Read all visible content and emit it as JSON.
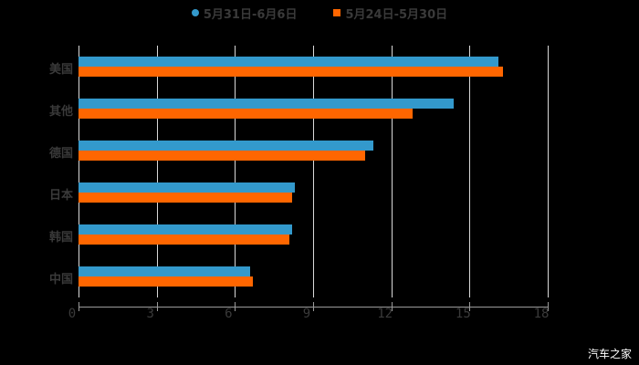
{
  "chart_data": {
    "type": "bar",
    "orientation": "horizontal",
    "title": "",
    "xlabel": "",
    "ylabel": "",
    "categories": [
      "美国",
      "其他",
      "德国",
      "日本",
      "韩国",
      "中国"
    ],
    "series": [
      {
        "name": "5月31日-6月6日",
        "color": "#3399cc",
        "values": [
          16.1,
          14.4,
          11.3,
          8.3,
          8.2,
          6.6
        ]
      },
      {
        "name": "5月24日-5月30日",
        "color": "#ff6600",
        "values": [
          16.3,
          12.8,
          11.0,
          8.2,
          8.1,
          6.7
        ]
      }
    ],
    "xlim": [
      0,
      18
    ],
    "xticks": [
      "0",
      "3",
      "6",
      "9",
      "12",
      "15",
      "18"
    ],
    "grid": true,
    "legend_position": "top"
  },
  "legend": {
    "series1": "5月31日-6月6日",
    "series2": "5月24日-5月30日"
  },
  "watermark": "汽车之家"
}
